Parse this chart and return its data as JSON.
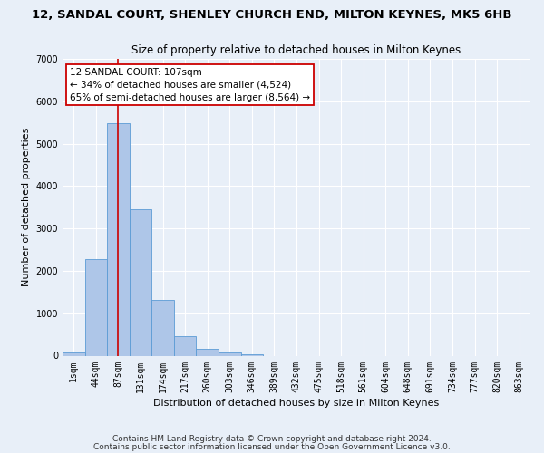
{
  "title": "12, SANDAL COURT, SHENLEY CHURCH END, MILTON KEYNES, MK5 6HB",
  "subtitle": "Size of property relative to detached houses in Milton Keynes",
  "xlabel": "Distribution of detached houses by size in Milton Keynes",
  "ylabel": "Number of detached properties",
  "bar_labels": [
    "1sqm",
    "44sqm",
    "87sqm",
    "131sqm",
    "174sqm",
    "217sqm",
    "260sqm",
    "303sqm",
    "346sqm",
    "389sqm",
    "432sqm",
    "475sqm",
    "518sqm",
    "561sqm",
    "604sqm",
    "648sqm",
    "691sqm",
    "734sqm",
    "777sqm",
    "820sqm",
    "863sqm"
  ],
  "bar_heights": [
    80,
    2280,
    5480,
    3450,
    1320,
    470,
    155,
    80,
    40,
    0,
    0,
    0,
    0,
    0,
    0,
    0,
    0,
    0,
    0,
    0,
    0
  ],
  "bar_color": "#aec6e8",
  "bar_edge_color": "#5b9bd5",
  "ylim": [
    0,
    7000
  ],
  "yticks": [
    0,
    1000,
    2000,
    3000,
    4000,
    5000,
    6000,
    7000
  ],
  "property_line_x": 2,
  "property_line_label": "12 SANDAL COURT: 107sqm",
  "annotation_line1": "← 34% of detached houses are smaller (4,524)",
  "annotation_line2": "65% of semi-detached houses are larger (8,564) →",
  "annotation_box_color": "#ffffff",
  "annotation_box_edge": "#cc0000",
  "vline_color": "#cc0000",
  "footer1": "Contains HM Land Registry data © Crown copyright and database right 2024.",
  "footer2": "Contains public sector information licensed under the Open Government Licence v3.0.",
  "bg_color": "#e8eff8",
  "plot_bg_color": "#e8eff8",
  "grid_color": "#ffffff",
  "title_fontsize": 9.5,
  "subtitle_fontsize": 8.5,
  "axis_label_fontsize": 8,
  "tick_fontsize": 7,
  "footer_fontsize": 6.5,
  "annotation_fontsize": 7.5
}
